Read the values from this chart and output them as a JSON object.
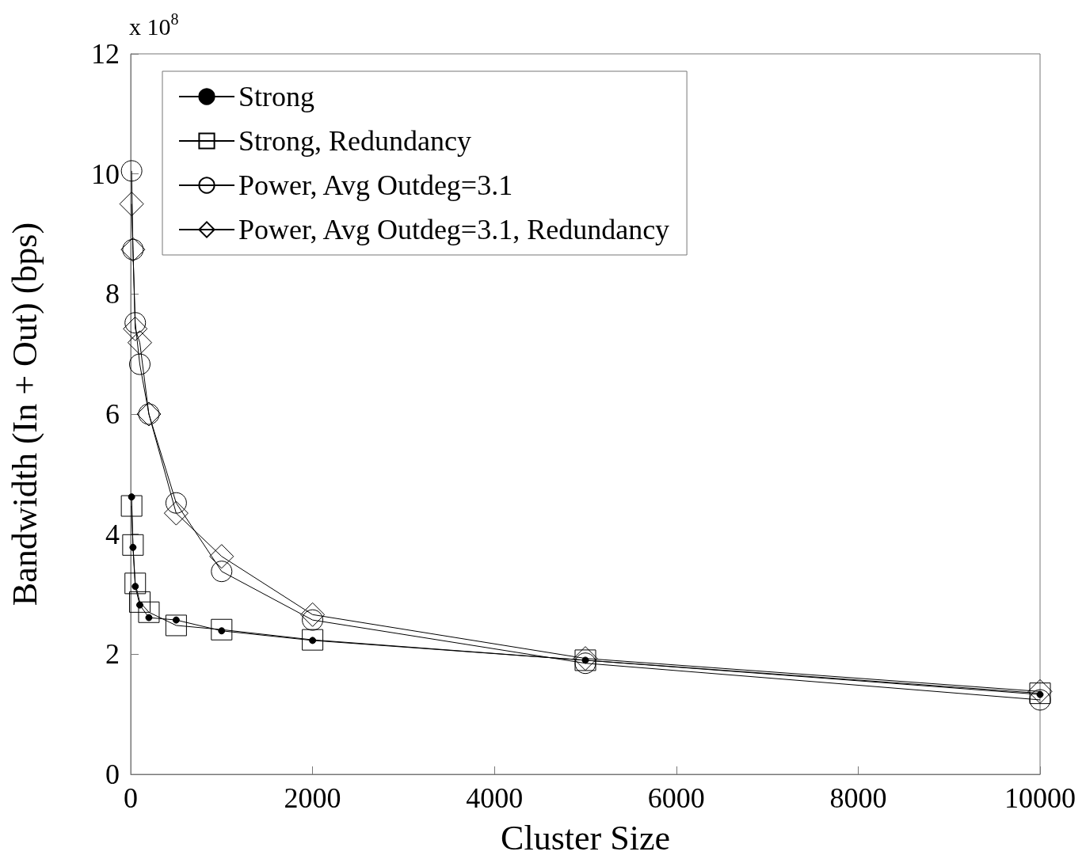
{
  "chart_data": {
    "type": "line",
    "xlabel": "Cluster Size",
    "ylabel": "Bandwidth (In + Out) (bps)",
    "annotations": [
      "x 10$^{8}$"
    ],
    "x": [
      10,
      25,
      50,
      100,
      200,
      500,
      1000,
      2000,
      5000,
      10000
    ],
    "series": [
      {
        "name": "Strong",
        "color": "#000000",
        "marker": "circle",
        "values": [
          4.62,
          3.78,
          3.13,
          2.82,
          2.61,
          2.57,
          2.39,
          2.23,
          1.9,
          1.33
        ]
      },
      {
        "name": "Strong, Redundancy",
        "color": "#000000",
        "marker": "square",
        "values": [
          4.47,
          3.82,
          3.18,
          2.87,
          2.7,
          2.48,
          2.41,
          2.24,
          1.9,
          1.35
        ]
      },
      {
        "name": "Power, Avg Outdeg=3.1",
        "color": "#000000",
        "marker": "circle",
        "values": [
          10.05,
          8.74,
          7.52,
          6.83,
          6.0,
          4.52,
          3.38,
          2.57,
          1.85,
          1.24
        ]
      },
      {
        "name": "Power, Avg Outdeg=3.1, Redundancy",
        "color": "#000000",
        "marker": "diamond",
        "values": [
          9.5,
          8.74,
          7.42,
          7.19,
          6.0,
          4.35,
          3.63,
          2.66,
          1.93,
          1.38
        ]
      }
    ],
    "xlim": [
      0,
      10000
    ],
    "xticks": [
      0,
      2000,
      4000,
      6000,
      8000,
      10000
    ],
    "ylim": [
      0,
      12
    ],
    "yticks": [
      0,
      2,
      4,
      6,
      8,
      10,
      12
    ],
    "grid": false,
    "legend": "top left",
    "line_style": "solid"
  }
}
